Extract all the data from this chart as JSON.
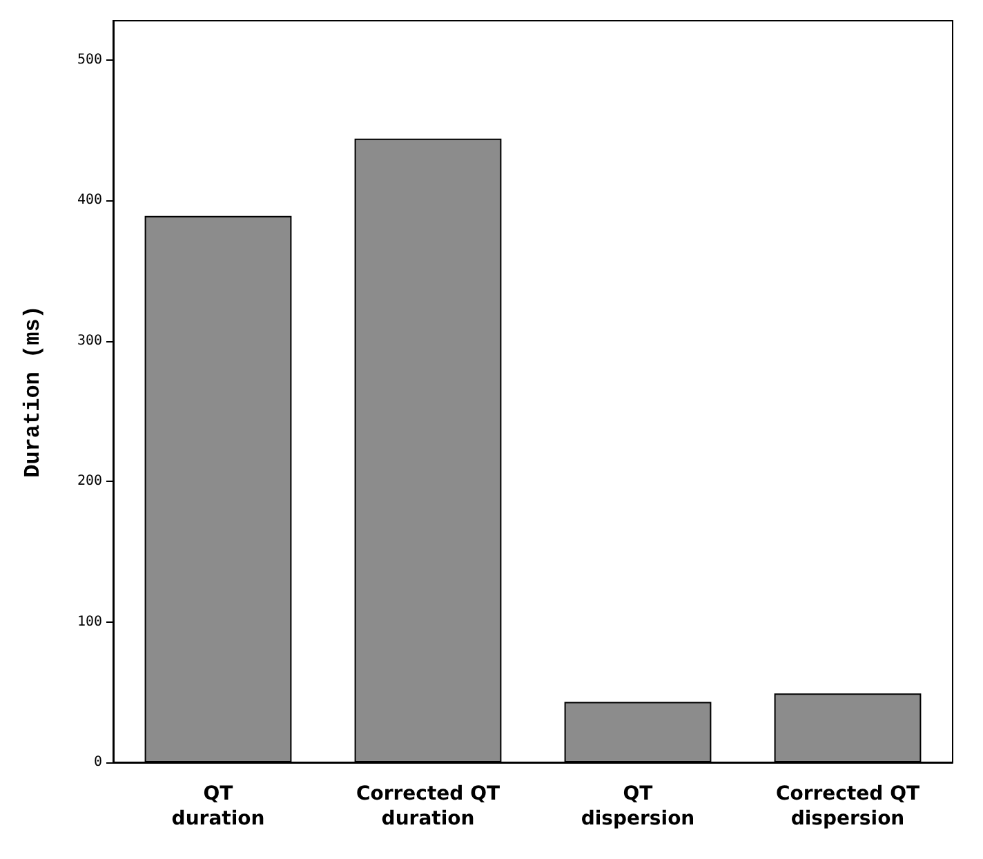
{
  "chart_data": {
    "type": "bar",
    "ylabel": "Duration (ms)",
    "categories": [
      "QT\nduration",
      "Corrected QT\nduration",
      "QT\ndispersion",
      "Corrected QT\ndispersion"
    ],
    "values": [
      389,
      444,
      43,
      49
    ],
    "color": "#8c8c8c",
    "ylim": [
      0,
      528
    ],
    "yticks": [
      0,
      100,
      200,
      300,
      400,
      500
    ],
    "grid": false
  }
}
